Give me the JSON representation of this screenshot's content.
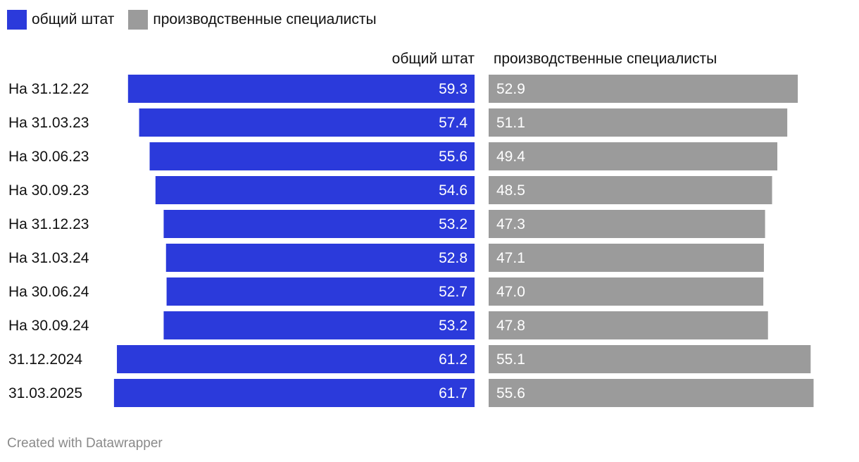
{
  "colors": {
    "series1": "#2b3adb",
    "series2": "#9b9b9b",
    "label_on_bar": "#ffffff",
    "text": "#111111",
    "footer": "#8a8a8a"
  },
  "legend": [
    {
      "label": "общий штат"
    },
    {
      "label": "производственные специалисты"
    }
  ],
  "footer": {
    "credit": "Created with Datawrapper"
  },
  "chart_data": {
    "type": "bar",
    "orientation": "horizontal",
    "layout_style": "split-bars",
    "categories": [
      "На 31.12.22",
      "На 31.03.23",
      "На 30.06.23",
      "На 30.09.23",
      "На 31.12.23",
      "На 31.03.24",
      "На 30.06.24",
      "На 30.09.24",
      "31.12.2024",
      "31.03.2025"
    ],
    "series": [
      {
        "name": "общий штат",
        "values": [
          59.3,
          57.4,
          55.6,
          54.6,
          53.2,
          52.8,
          52.7,
          53.2,
          61.2,
          61.7
        ],
        "labels": [
          "59.3",
          "57.4",
          "55.6",
          "54.6",
          "53.2",
          "52.8",
          "52.7",
          "53.2",
          "61.2",
          "61.7"
        ]
      },
      {
        "name": "производственные специалисты",
        "values": [
          52.9,
          51.1,
          49.4,
          48.5,
          47.3,
          47.1,
          47.0,
          47.8,
          55.1,
          55.6
        ],
        "labels": [
          "52.9",
          "51.1",
          "49.4",
          "48.5",
          "47.3",
          "47.1",
          "47.0",
          "47.8",
          "55.1",
          "55.6"
        ]
      }
    ],
    "legend_position": "top-left",
    "grid": false
  }
}
